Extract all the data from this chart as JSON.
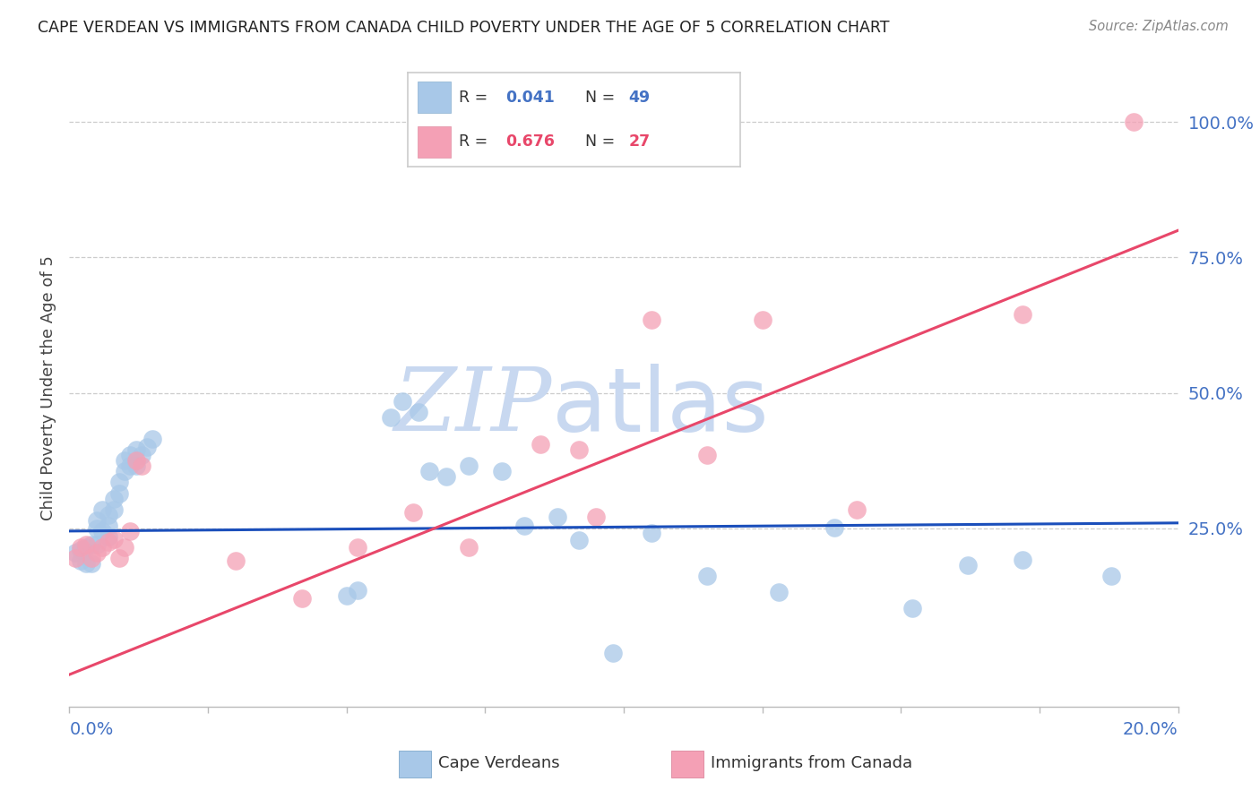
{
  "title": "CAPE VERDEAN VS IMMIGRANTS FROM CANADA CHILD POVERTY UNDER THE AGE OF 5 CORRELATION CHART",
  "source": "Source: ZipAtlas.com",
  "ylabel": "Child Poverty Under the Age of 5",
  "legend_label1": "Cape Verdeans",
  "legend_label2": "Immigrants from Canada",
  "R1_text": "0.041",
  "N1_text": "49",
  "R2_text": "0.676",
  "N2_text": "27",
  "color_blue": "#A8C8E8",
  "color_pink": "#F4A0B5",
  "line_color_blue": "#1B4FBB",
  "line_color_pink": "#E8476A",
  "axis_label_color": "#4472C4",
  "watermark_color": "#C8D8F0",
  "xmin": 0.0,
  "xmax": 0.2,
  "ymin": -0.08,
  "ymax": 1.1,
  "yticks": [
    0.0,
    0.25,
    0.5,
    0.75,
    1.0
  ],
  "ytick_labels": [
    "",
    "25.0%",
    "50.0%",
    "75.0%",
    "100.0%"
  ],
  "cv_line_y0": 0.245,
  "cv_line_y1": 0.26,
  "ca_line_y0": -0.02,
  "ca_line_y1": 0.8,
  "cape_verdean_x": [
    0.001,
    0.002,
    0.002,
    0.003,
    0.003,
    0.004,
    0.004,
    0.005,
    0.005,
    0.005,
    0.006,
    0.006,
    0.007,
    0.007,
    0.007,
    0.008,
    0.008,
    0.009,
    0.009,
    0.01,
    0.01,
    0.011,
    0.011,
    0.012,
    0.012,
    0.013,
    0.014,
    0.015,
    0.05,
    0.052,
    0.058,
    0.06,
    0.063,
    0.065,
    0.068,
    0.072,
    0.078,
    0.082,
    0.088,
    0.092,
    0.098,
    0.105,
    0.115,
    0.128,
    0.138,
    0.152,
    0.162,
    0.172,
    0.188
  ],
  "cape_verdean_y": [
    0.205,
    0.21,
    0.19,
    0.215,
    0.185,
    0.22,
    0.185,
    0.25,
    0.265,
    0.22,
    0.285,
    0.245,
    0.275,
    0.235,
    0.255,
    0.305,
    0.285,
    0.335,
    0.315,
    0.355,
    0.375,
    0.385,
    0.365,
    0.395,
    0.365,
    0.385,
    0.4,
    0.415,
    0.125,
    0.135,
    0.455,
    0.485,
    0.465,
    0.355,
    0.345,
    0.365,
    0.355,
    0.255,
    0.272,
    0.228,
    0.02,
    0.242,
    0.162,
    0.132,
    0.252,
    0.102,
    0.182,
    0.192,
    0.162
  ],
  "canada_x": [
    0.001,
    0.002,
    0.003,
    0.004,
    0.005,
    0.006,
    0.007,
    0.008,
    0.009,
    0.01,
    0.011,
    0.012,
    0.013,
    0.03,
    0.042,
    0.052,
    0.062,
    0.072,
    0.085,
    0.092,
    0.095,
    0.105,
    0.115,
    0.125,
    0.142,
    0.172,
    0.192
  ],
  "canada_y": [
    0.195,
    0.215,
    0.22,
    0.195,
    0.205,
    0.215,
    0.225,
    0.23,
    0.195,
    0.215,
    0.245,
    0.375,
    0.365,
    0.19,
    0.12,
    0.215,
    0.28,
    0.215,
    0.405,
    0.395,
    0.272,
    0.635,
    0.385,
    0.635,
    0.285,
    0.645,
    1.0
  ]
}
